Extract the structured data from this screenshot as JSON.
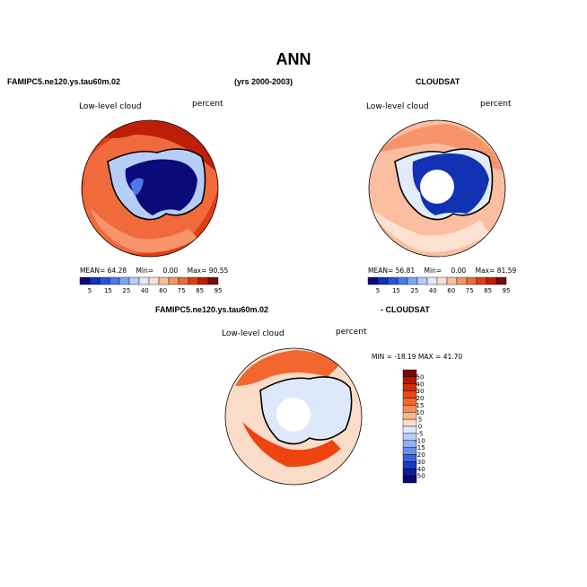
{
  "figure": {
    "title": "ANN",
    "model_name": "FAMIPC5.ne120.ys.tau60m.02",
    "years": "(yrs 2000-2003)",
    "obs_name": "CLOUDSAT",
    "diff_model": "FAMIPC5.ne120.ys.tau60m.02",
    "diff_obs": "- CLOUDSAT"
  },
  "panels": [
    {
      "variable": "Low-level cloud",
      "units": "percent",
      "stats": {
        "mean_label": "MEAN=",
        "mean": "64.28",
        "min_label": "Min=",
        "min": "0.00",
        "max_label": "Max=",
        "max": "90.55"
      }
    },
    {
      "variable": "Low-level cloud",
      "units": "percent",
      "stats": {
        "mean_label": "MEAN=",
        "mean": "56.81",
        "min_label": "Min=",
        "min": "0.00",
        "max_label": "Max=",
        "max": "81.59"
      }
    },
    {
      "variable": "Low-level cloud",
      "units": "percent",
      "stats_text": "MIN = -18.19  MAX =  41.70"
    }
  ],
  "colorbar_abs": {
    "ticks": [
      "5",
      "15",
      "25",
      "40",
      "60",
      "75",
      "85",
      "95"
    ],
    "colors": [
      "#0a0a7a",
      "#1232b4",
      "#2855d8",
      "#4a7ae8",
      "#7fa5f2",
      "#b6cdf7",
      "#e2ebfb",
      "#fde2d2",
      "#fbbea1",
      "#f7946c",
      "#f06a3c",
      "#e23e12",
      "#bf1e06",
      "#7a0a02"
    ]
  },
  "colorbar_diff": {
    "ticks": [
      "50",
      "40",
      "30",
      "20",
      "15",
      "10",
      "5",
      "0",
      "-5",
      "-10",
      "-15",
      "-20",
      "-30",
      "-40",
      "-50"
    ],
    "colors": [
      "#7a0a02",
      "#b01a05",
      "#d42a08",
      "#ee4412",
      "#f26630",
      "#f58c5c",
      "#f8b690",
      "#fbdcc8",
      "#dde8fa",
      "#b6cdf7",
      "#90b0f0",
      "#6a8ee8",
      "#3a62da",
      "#1a3cbd",
      "#0a1d94",
      "#060a6a"
    ]
  }
}
